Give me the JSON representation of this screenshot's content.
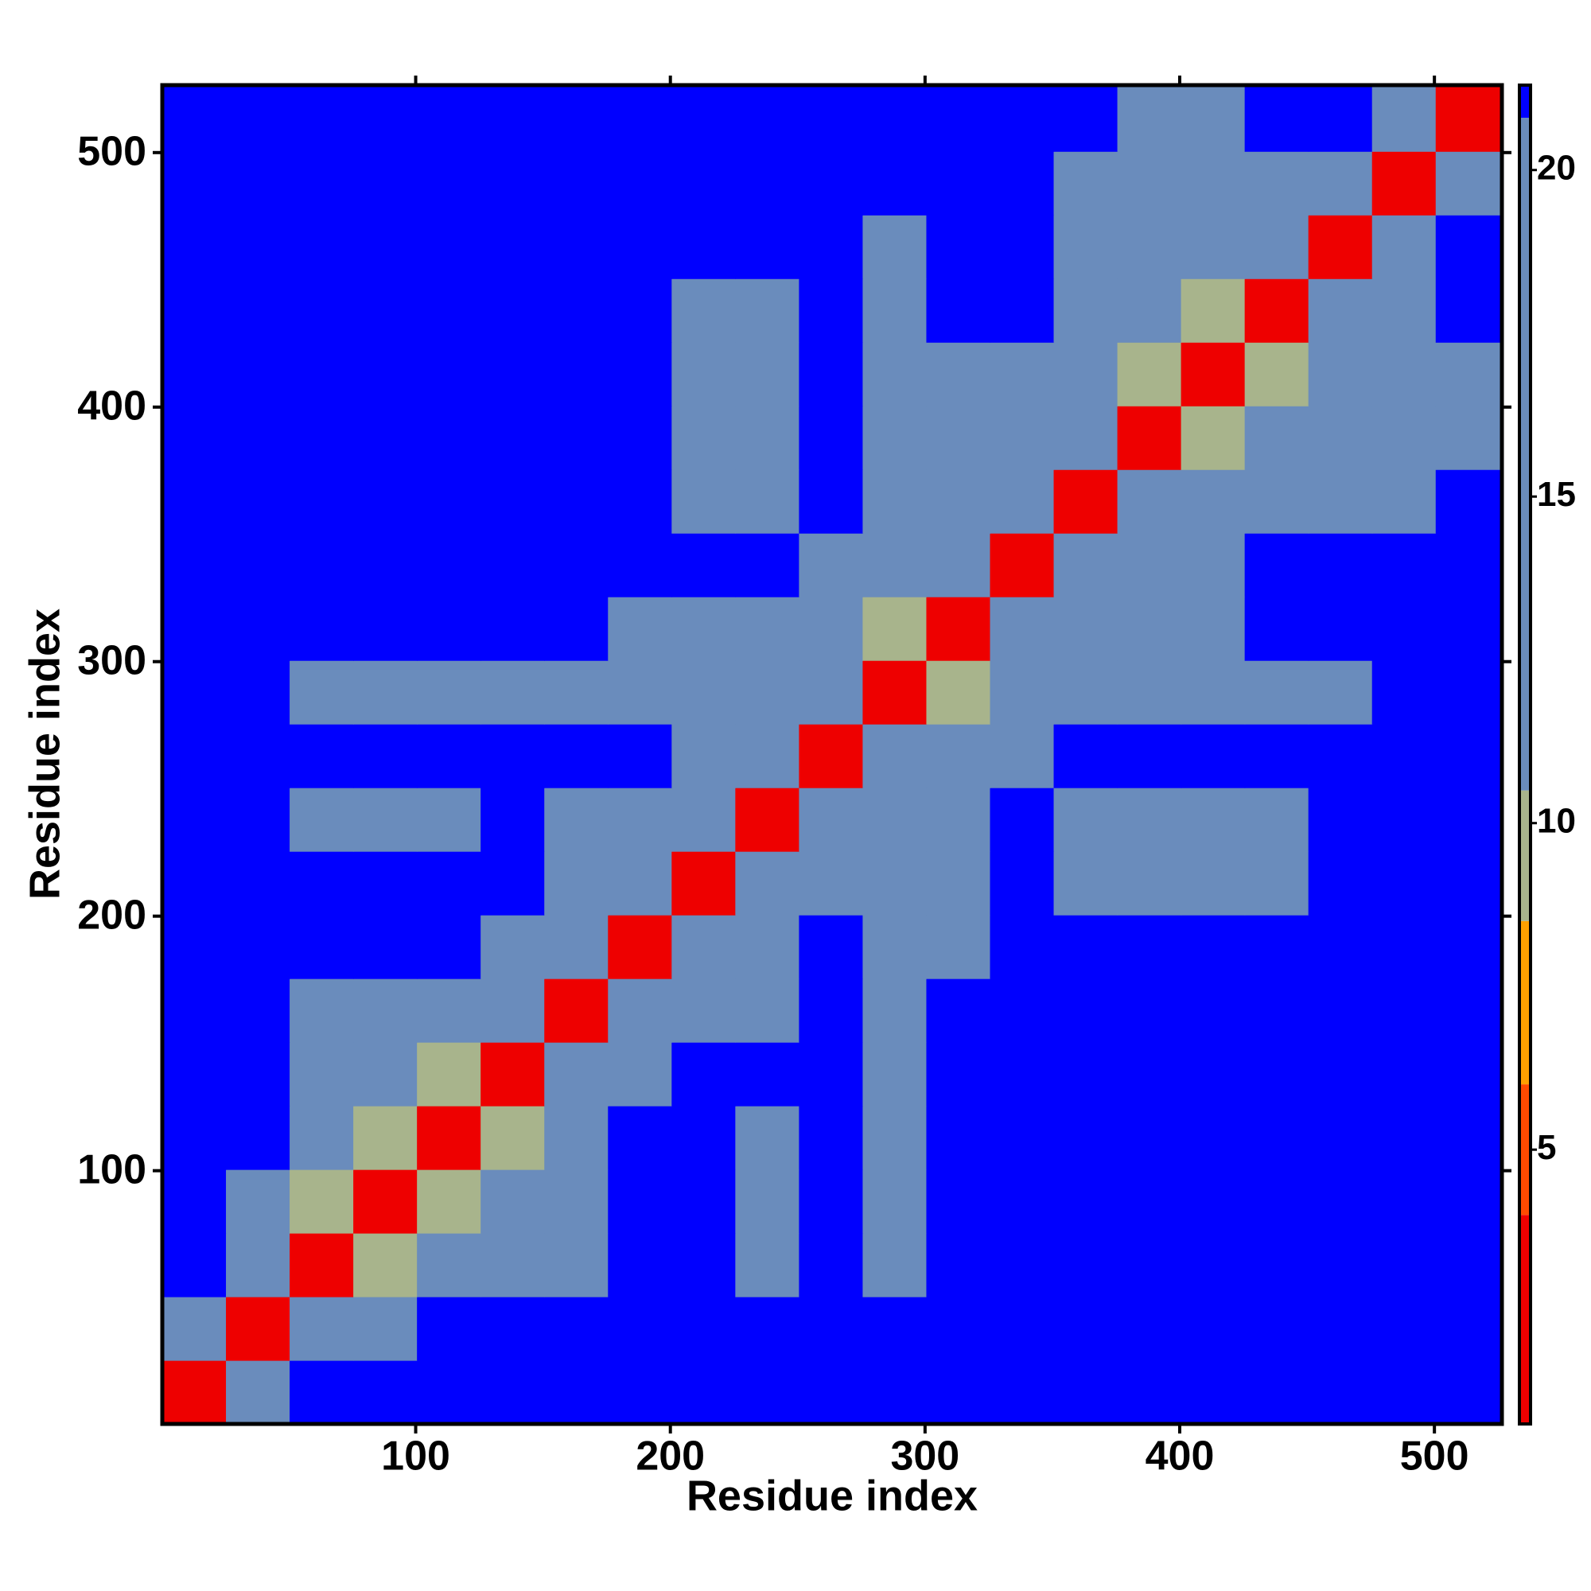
{
  "chart_data": {
    "type": "heatmap",
    "x_label": "Residue index",
    "y_label": "Residue index",
    "xlim": [
      0.5,
      526.5
    ],
    "ylim": [
      0.5,
      526.5
    ],
    "xticks": [
      100,
      200,
      300,
      400,
      500
    ],
    "yticks": [
      100,
      200,
      300,
      400,
      500
    ],
    "xbins": [
      0.5,
      25.5,
      50.5,
      75.5,
      100.5,
      125.5,
      150.5,
      175.5,
      200.5,
      225.5,
      250.5,
      275.5,
      300.5,
      325.5,
      350.5,
      375.5,
      400.5,
      425.5,
      450.5,
      475.5,
      500.5,
      526.5
    ],
    "ybins": [
      0.5,
      25.5,
      50.5,
      75.5,
      100.5,
      125.5,
      150.5,
      175.5,
      200.5,
      225.5,
      250.5,
      275.5,
      300.5,
      325.5,
      350.5,
      375.5,
      400.5,
      425.5,
      450.5,
      475.5,
      500.5,
      526.5
    ],
    "z": [
      [
        3,
        16,
        21,
        21,
        21,
        21,
        21,
        21,
        21,
        21,
        21,
        21,
        21,
        21,
        21,
        21,
        21,
        21,
        21,
        21,
        21
      ],
      [
        16,
        3,
        16,
        20,
        21,
        21,
        21,
        21,
        21,
        21,
        21,
        21,
        21,
        21,
        21,
        21,
        21,
        21,
        21,
        21,
        21
      ],
      [
        21,
        16,
        3,
        10,
        14,
        14,
        17,
        21,
        21,
        20,
        21,
        19,
        21,
        21,
        21,
        21,
        21,
        21,
        21,
        21,
        21
      ],
      [
        21,
        20,
        10,
        3,
        10,
        14,
        16,
        21,
        21,
        20,
        21,
        19,
        21,
        21,
        21,
        21,
        21,
        21,
        21,
        21,
        21
      ],
      [
        21,
        21,
        14,
        10,
        3,
        10,
        15,
        21,
        21,
        20,
        21,
        19,
        21,
        21,
        21,
        21,
        21,
        21,
        21,
        21,
        21
      ],
      [
        21,
        21,
        14,
        14,
        10,
        3,
        13,
        19,
        21,
        21,
        21,
        20,
        21,
        21,
        21,
        21,
        21,
        21,
        21,
        21,
        21
      ],
      [
        21,
        21,
        17,
        16,
        15,
        13,
        3,
        16,
        20,
        20,
        21,
        20,
        21,
        21,
        21,
        21,
        21,
        21,
        21,
        21,
        21
      ],
      [
        21,
        21,
        21,
        21,
        21,
        19,
        16,
        3,
        15,
        18,
        21,
        17,
        17,
        21,
        21,
        21,
        21,
        21,
        21,
        21,
        21
      ],
      [
        21,
        21,
        21,
        21,
        21,
        21,
        20,
        15,
        3,
        13,
        16,
        14,
        16,
        21,
        17,
        18,
        18,
        19,
        21,
        21,
        21
      ],
      [
        21,
        21,
        20,
        20,
        20,
        21,
        20,
        18,
        13,
        3,
        16,
        14,
        16,
        21,
        16,
        18,
        18,
        19,
        21,
        21,
        21
      ],
      [
        21,
        21,
        21,
        21,
        21,
        21,
        21,
        21,
        16,
        16,
        3,
        13,
        15,
        18,
        21,
        21,
        21,
        21,
        21,
        21,
        21
      ],
      [
        21,
        21,
        19,
        19,
        19,
        20,
        20,
        17,
        14,
        14,
        13,
        3,
        10,
        17,
        17,
        19,
        19,
        19,
        20,
        21,
        21
      ],
      [
        21,
        21,
        21,
        21,
        21,
        21,
        21,
        17,
        16,
        16,
        15,
        10,
        3,
        14,
        18,
        20,
        20,
        21,
        21,
        21,
        21
      ],
      [
        21,
        21,
        21,
        21,
        21,
        21,
        21,
        21,
        21,
        21,
        18,
        17,
        14,
        3,
        15,
        17,
        18,
        21,
        21,
        21,
        21
      ],
      [
        21,
        21,
        21,
        21,
        21,
        21,
        21,
        21,
        17,
        16,
        21,
        17,
        18,
        15,
        3,
        13,
        14,
        14,
        14,
        18,
        21
      ],
      [
        21,
        21,
        21,
        21,
        21,
        21,
        21,
        21,
        18,
        18,
        21,
        19,
        20,
        17,
        13,
        3,
        10,
        11,
        14,
        17,
        19
      ],
      [
        21,
        21,
        21,
        21,
        21,
        21,
        21,
        21,
        18,
        18,
        21,
        19,
        20,
        18,
        14,
        10,
        3,
        10,
        12,
        16,
        19
      ],
      [
        21,
        21,
        21,
        21,
        21,
        21,
        21,
        21,
        19,
        19,
        21,
        19,
        21,
        21,
        14,
        11,
        10,
        3,
        12,
        16,
        21
      ],
      [
        21,
        21,
        21,
        21,
        21,
        21,
        21,
        21,
        21,
        21,
        21,
        20,
        21,
        21,
        14,
        14,
        12,
        12,
        3,
        15,
        21
      ],
      [
        21,
        21,
        21,
        21,
        21,
        21,
        21,
        21,
        21,
        21,
        21,
        21,
        21,
        21,
        18,
        17,
        16,
        16,
        15,
        3,
        16
      ],
      [
        21,
        21,
        21,
        21,
        21,
        21,
        21,
        21,
        21,
        21,
        21,
        21,
        21,
        21,
        21,
        19,
        19,
        21,
        21,
        16,
        3
      ]
    ],
    "color_steps": [
      {
        "max": 4,
        "color": "#ee0000"
      },
      {
        "max": 6,
        "color": "#ff4a00"
      },
      {
        "max": 8.5,
        "color": "#ffa000"
      },
      {
        "max": 10.5,
        "color": "#a8b48c"
      },
      {
        "max": 20.8,
        "color": "#6a8cbc"
      },
      {
        "max": 21.3,
        "color": "#0000ff"
      }
    ],
    "colorbar": {
      "lim": [
        0.8,
        21.3
      ],
      "ticks": [
        5,
        10,
        15,
        20
      ]
    }
  }
}
